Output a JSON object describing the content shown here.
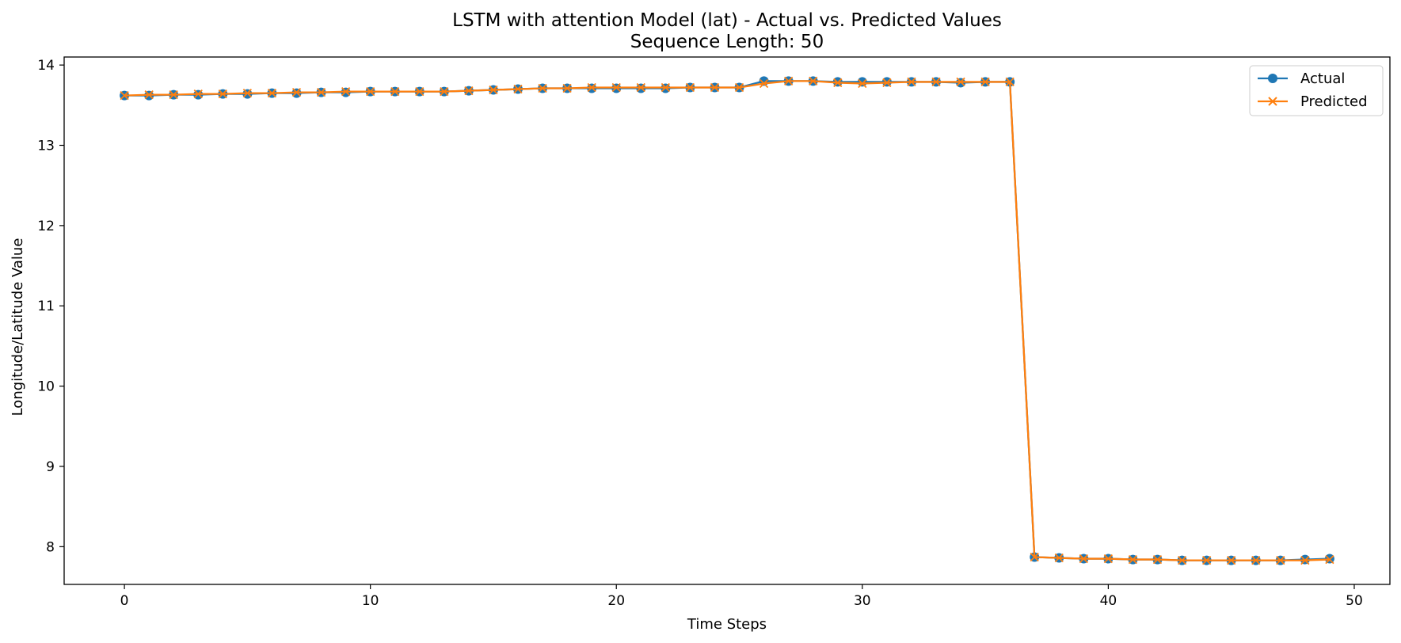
{
  "chart_data": {
    "type": "line",
    "title": "LSTM with attention Model (lat) - Actual vs. Predicted Values",
    "subtitle": "Sequence Length: 50",
    "xlabel": "Time Steps",
    "ylabel": "Longitude/Latitude Value",
    "xlim": [
      -2.45,
      51.45
    ],
    "ylim": [
      7.53,
      14.1
    ],
    "xticks": [
      0,
      10,
      20,
      30,
      40,
      50
    ],
    "yticks": [
      8,
      9,
      10,
      11,
      12,
      13,
      14
    ],
    "grid": false,
    "legend": "top-right",
    "x": [
      0,
      1,
      2,
      3,
      4,
      5,
      6,
      7,
      8,
      9,
      10,
      11,
      12,
      13,
      14,
      15,
      16,
      17,
      18,
      19,
      20,
      21,
      22,
      23,
      24,
      25,
      26,
      27,
      28,
      29,
      30,
      31,
      32,
      33,
      34,
      35,
      36,
      37,
      38,
      39,
      40,
      41,
      42,
      43,
      44,
      45,
      46,
      47,
      48,
      49
    ],
    "series": [
      {
        "name": "Actual",
        "color": "#1f77b4",
        "marker": "circle",
        "values": [
          13.62,
          13.62,
          13.63,
          13.63,
          13.64,
          13.64,
          13.65,
          13.65,
          13.66,
          13.66,
          13.67,
          13.67,
          13.67,
          13.67,
          13.68,
          13.69,
          13.7,
          13.71,
          13.71,
          13.71,
          13.71,
          13.71,
          13.71,
          13.72,
          13.72,
          13.72,
          13.8,
          13.8,
          13.8,
          13.79,
          13.79,
          13.79,
          13.79,
          13.79,
          13.78,
          13.79,
          13.79,
          7.87,
          7.86,
          7.85,
          7.85,
          7.84,
          7.84,
          7.83,
          7.83,
          7.83,
          7.83,
          7.83,
          7.84,
          7.85
        ]
      },
      {
        "name": "Predicted",
        "color": "#ff7f0e",
        "marker": "x",
        "values": [
          13.62,
          13.63,
          13.63,
          13.64,
          13.64,
          13.65,
          13.65,
          13.66,
          13.66,
          13.67,
          13.67,
          13.67,
          13.67,
          13.67,
          13.68,
          13.69,
          13.7,
          13.71,
          13.71,
          13.72,
          13.72,
          13.72,
          13.72,
          13.72,
          13.72,
          13.72,
          13.77,
          13.8,
          13.8,
          13.78,
          13.77,
          13.78,
          13.79,
          13.79,
          13.79,
          13.79,
          13.79,
          7.87,
          7.86,
          7.85,
          7.85,
          7.84,
          7.84,
          7.83,
          7.83,
          7.83,
          7.83,
          7.83,
          7.83,
          7.84
        ]
      }
    ]
  }
}
